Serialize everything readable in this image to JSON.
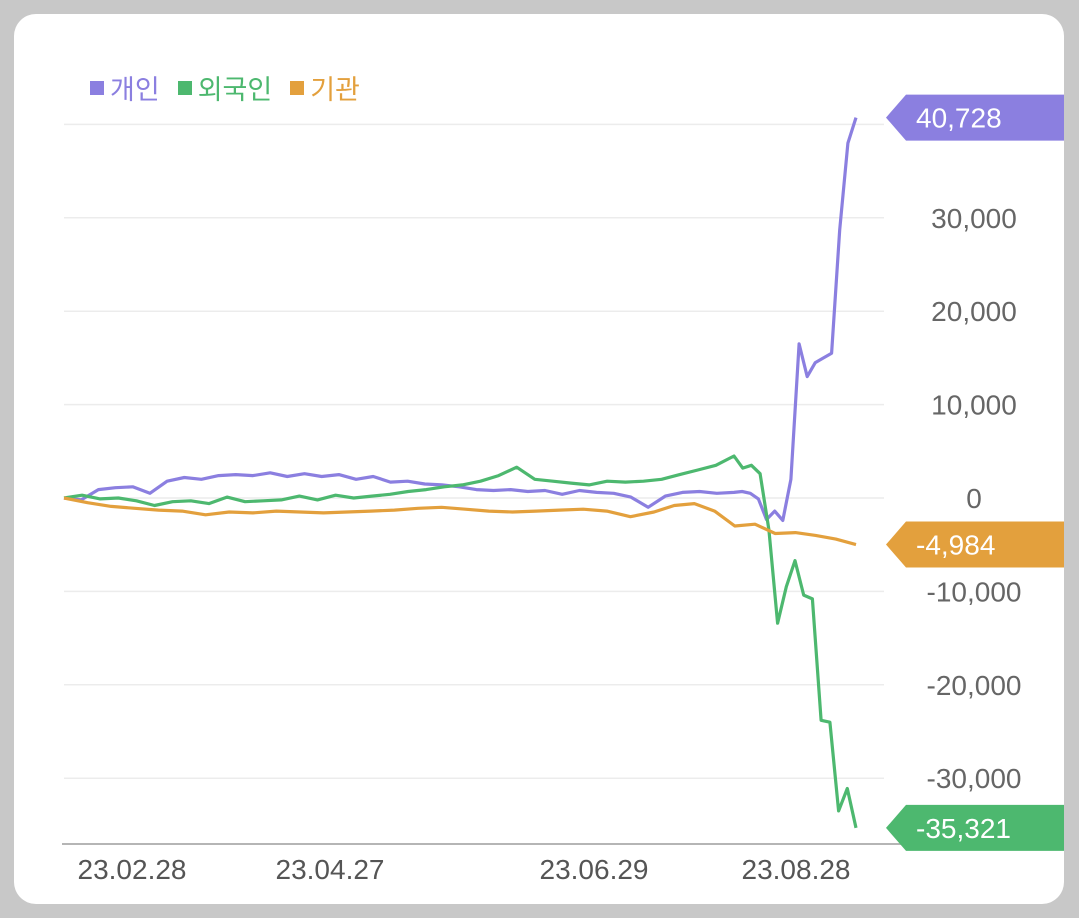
{
  "chart_data": {
    "type": "line",
    "title": "",
    "xlabel": "",
    "ylabel": "",
    "x_ticks": [
      "23.02.28",
      "23.04.27",
      "23.06.29",
      "23.08.28"
    ],
    "y_ticks": [
      {
        "value": 30000,
        "label": "30,000"
      },
      {
        "value": 20000,
        "label": "20,000"
      },
      {
        "value": 10000,
        "label": "10,000"
      },
      {
        "value": 0,
        "label": "0"
      },
      {
        "value": -10000,
        "label": "-10,000"
      },
      {
        "value": -20000,
        "label": "-20,000"
      },
      {
        "value": -30000,
        "label": "-30,000"
      }
    ],
    "ylim": [
      -36000,
      40728
    ],
    "grid": true,
    "legend_position": "top-left",
    "series": [
      {
        "name": "개인",
        "color": "#8b7fe0",
        "last_label": "40,728",
        "values": [
          0,
          -200,
          900,
          1100,
          1200,
          500,
          1800,
          2200,
          2000,
          2400,
          2500,
          2400,
          2700,
          2300,
          2600,
          2300,
          2500,
          2000,
          2300,
          1700,
          1800,
          1500,
          1400,
          1200,
          900,
          800,
          900,
          700,
          800,
          400,
          800,
          600,
          500,
          100,
          -1000,
          200,
          600,
          700,
          500,
          600,
          700,
          500,
          -100,
          -2300,
          -1400,
          -2400,
          2000,
          16500,
          13000,
          14500,
          15000,
          15500,
          28700,
          38000,
          40728
        ]
      },
      {
        "name": "외국인",
        "color": "#4db86f",
        "last_label": "-35,321",
        "values": [
          0,
          300,
          -100,
          0,
          -300,
          -800,
          -400,
          -300,
          -600,
          100,
          -400,
          -300,
          -200,
          200,
          -200,
          300,
          0,
          200,
          400,
          700,
          900,
          1200,
          1400,
          1800,
          2400,
          3300,
          2000,
          1800,
          1600,
          1400,
          1800,
          1700,
          1800,
          2000,
          2500,
          3000,
          3500,
          4500,
          3200,
          3500,
          2600,
          -3400,
          -13400,
          -9500,
          -6700,
          -10400,
          -10800,
          -23800,
          -24000,
          -33500,
          -31100,
          -35321
        ]
      },
      {
        "name": "기관",
        "color": "#e3a03d",
        "last_label": "-4,984",
        "values": [
          0,
          -500,
          -900,
          -1100,
          -1300,
          -1400,
          -1800,
          -1500,
          -1600,
          -1400,
          -1500,
          -1600,
          -1500,
          -1400,
          -1300,
          -1100,
          -1000,
          -1200,
          -1400,
          -1500,
          -1400,
          -1300,
          -1200,
          -1400,
          -2000,
          -1500,
          -800,
          -600,
          -1400,
          -3000,
          -2800,
          -3800,
          -3700,
          -4000,
          -4400,
          -4984
        ]
      }
    ]
  }
}
